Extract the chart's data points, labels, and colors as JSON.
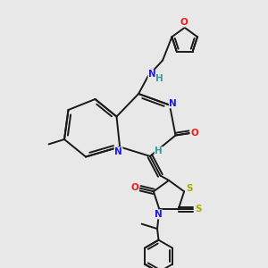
{
  "bg_color": "#e8e8e8",
  "bond_color": "#1a1a1a",
  "bond_width": 1.4,
  "atom_colors": {
    "N": "#1a1aee",
    "O": "#ee1a1a",
    "S": "#aaaa00",
    "H": "#3a9a9a",
    "C": "#1a1a1a"
  },
  "font_size": 7.5
}
